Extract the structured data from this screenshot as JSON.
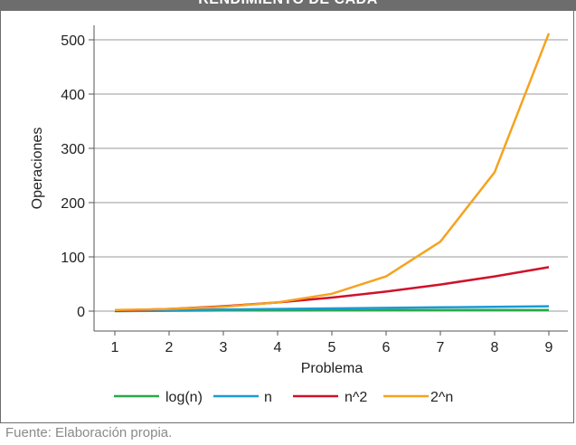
{
  "header": {
    "title": "RENDIMIENTO DE CADA"
  },
  "source": "Fuente: Elaboración propia.",
  "chart_data": {
    "type": "line",
    "title": "",
    "xlabel": "Problema",
    "ylabel": "Operaciones",
    "x": [
      1,
      2,
      3,
      4,
      5,
      6,
      7,
      8,
      9
    ],
    "xlim": [
      0.6,
      9.4
    ],
    "ylim": [
      -15,
      520
    ],
    "yticks": [
      0,
      100,
      200,
      300,
      400,
      500
    ],
    "grid": "horizontal",
    "legend": "bottom",
    "series": [
      {
        "name": "log(n)",
        "color": "#2aa84a",
        "values": [
          0,
          0.69,
          1.1,
          1.39,
          1.61,
          1.79,
          1.95,
          2.08,
          2.2
        ]
      },
      {
        "name": "n",
        "color": "#1a9ad6",
        "values": [
          1,
          2,
          3,
          4,
          5,
          6,
          7,
          8,
          9
        ]
      },
      {
        "name": "n^2",
        "color": "#d0112b",
        "values": [
          1,
          4,
          9,
          16,
          25,
          36,
          49,
          64,
          81
        ]
      },
      {
        "name": "2^n",
        "color": "#f5a320",
        "values": [
          2,
          4,
          8,
          16,
          32,
          64,
          128,
          256,
          512
        ]
      }
    ]
  }
}
